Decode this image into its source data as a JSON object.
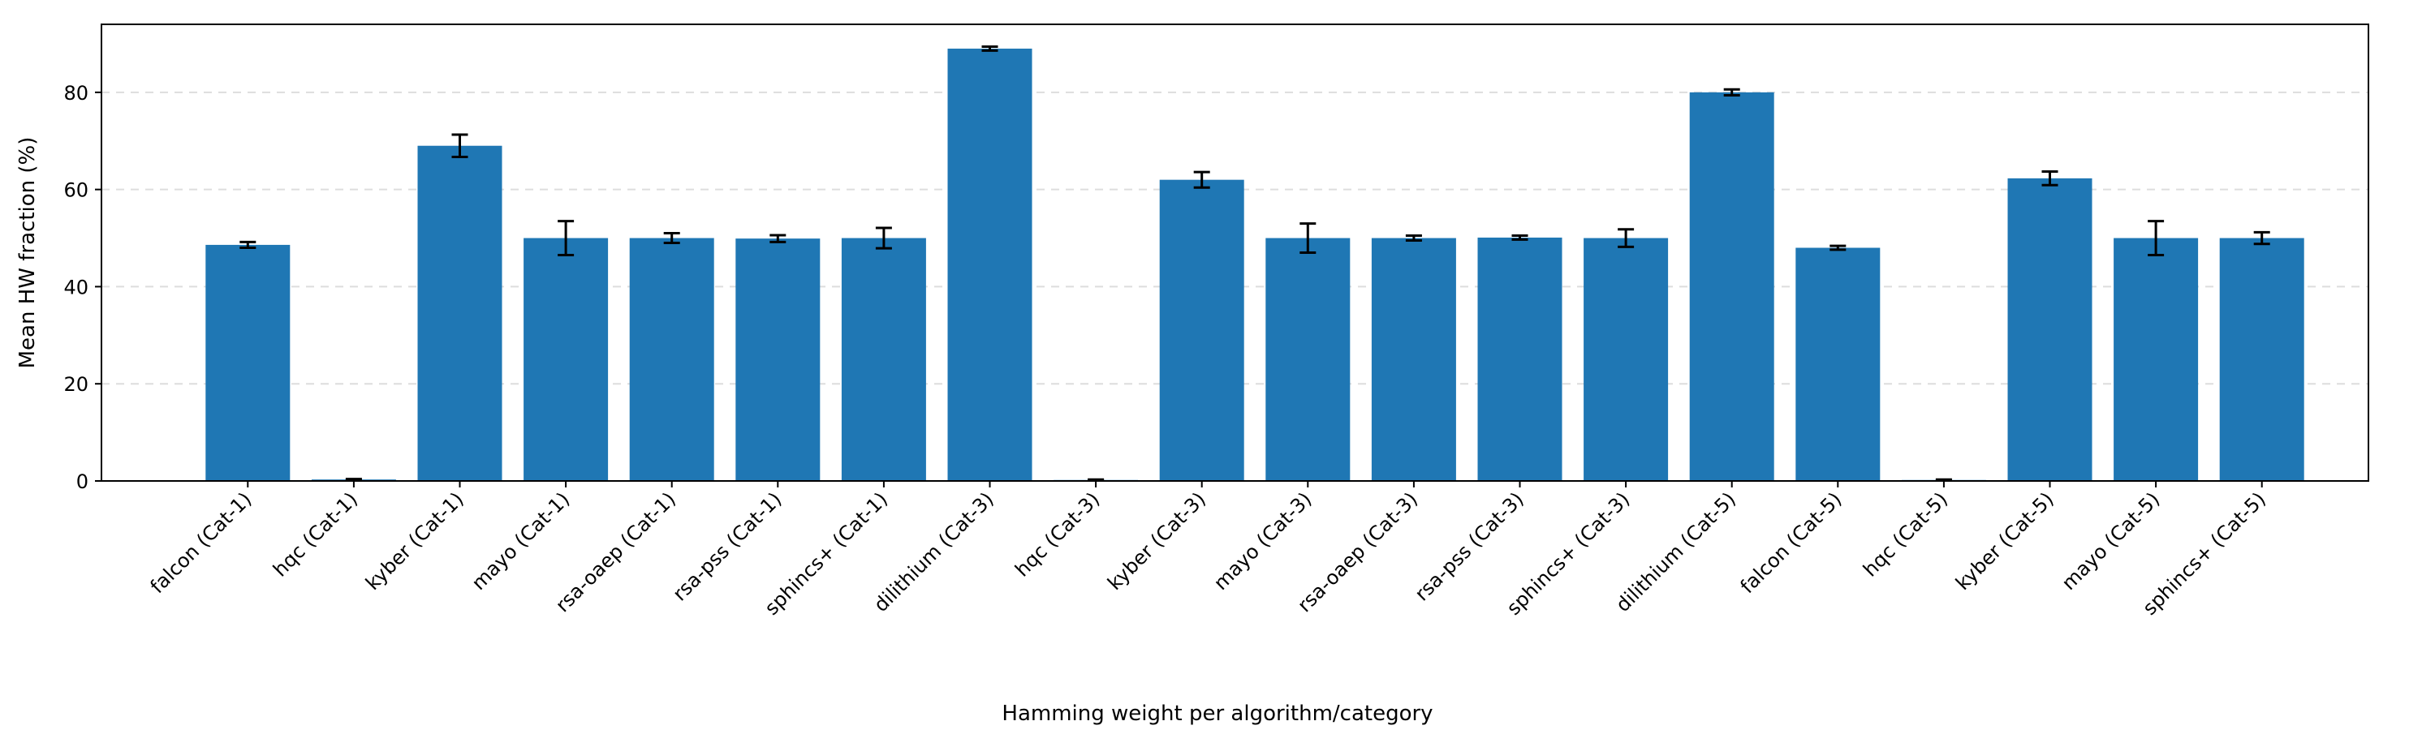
{
  "chart_data": {
    "type": "bar",
    "title": "",
    "xlabel": "Hamming weight per algorithm/category",
    "ylabel": "Mean HW fraction (%)",
    "ylim": [
      0,
      94
    ],
    "yticks": [
      0,
      20,
      40,
      60,
      80
    ],
    "grid": "y-dashed",
    "categories": [
      "falcon (Cat-1)",
      "hqc (Cat-1)",
      "kyber (Cat-1)",
      "mayo (Cat-1)",
      "rsa-oaep (Cat-1)",
      "rsa-pss (Cat-1)",
      "sphincs+ (Cat-1)",
      "dilithium (Cat-3)",
      "hqc (Cat-3)",
      "kyber (Cat-3)",
      "mayo (Cat-3)",
      "rsa-oaep (Cat-3)",
      "rsa-pss (Cat-3)",
      "sphincs+ (Cat-3)",
      "dilithium (Cat-5)",
      "falcon (Cat-5)",
      "hqc (Cat-5)",
      "kyber (Cat-5)",
      "mayo (Cat-5)",
      "sphincs+ (Cat-5)"
    ],
    "values": [
      48.6,
      0.3,
      69.0,
      50.0,
      50.0,
      49.9,
      50.0,
      89.0,
      0.2,
      62.0,
      50.0,
      50.0,
      50.1,
      50.0,
      80.0,
      48.0,
      0.2,
      62.3,
      50.0,
      50.0
    ],
    "errors": [
      0.6,
      0.1,
      2.3,
      3.5,
      1.0,
      0.7,
      2.1,
      0.4,
      0.1,
      1.6,
      3.0,
      0.5,
      0.4,
      1.8,
      0.6,
      0.4,
      0.1,
      1.4,
      3.5,
      1.2
    ],
    "bar_color": "#1f77b4",
    "error_color": "#000000"
  }
}
